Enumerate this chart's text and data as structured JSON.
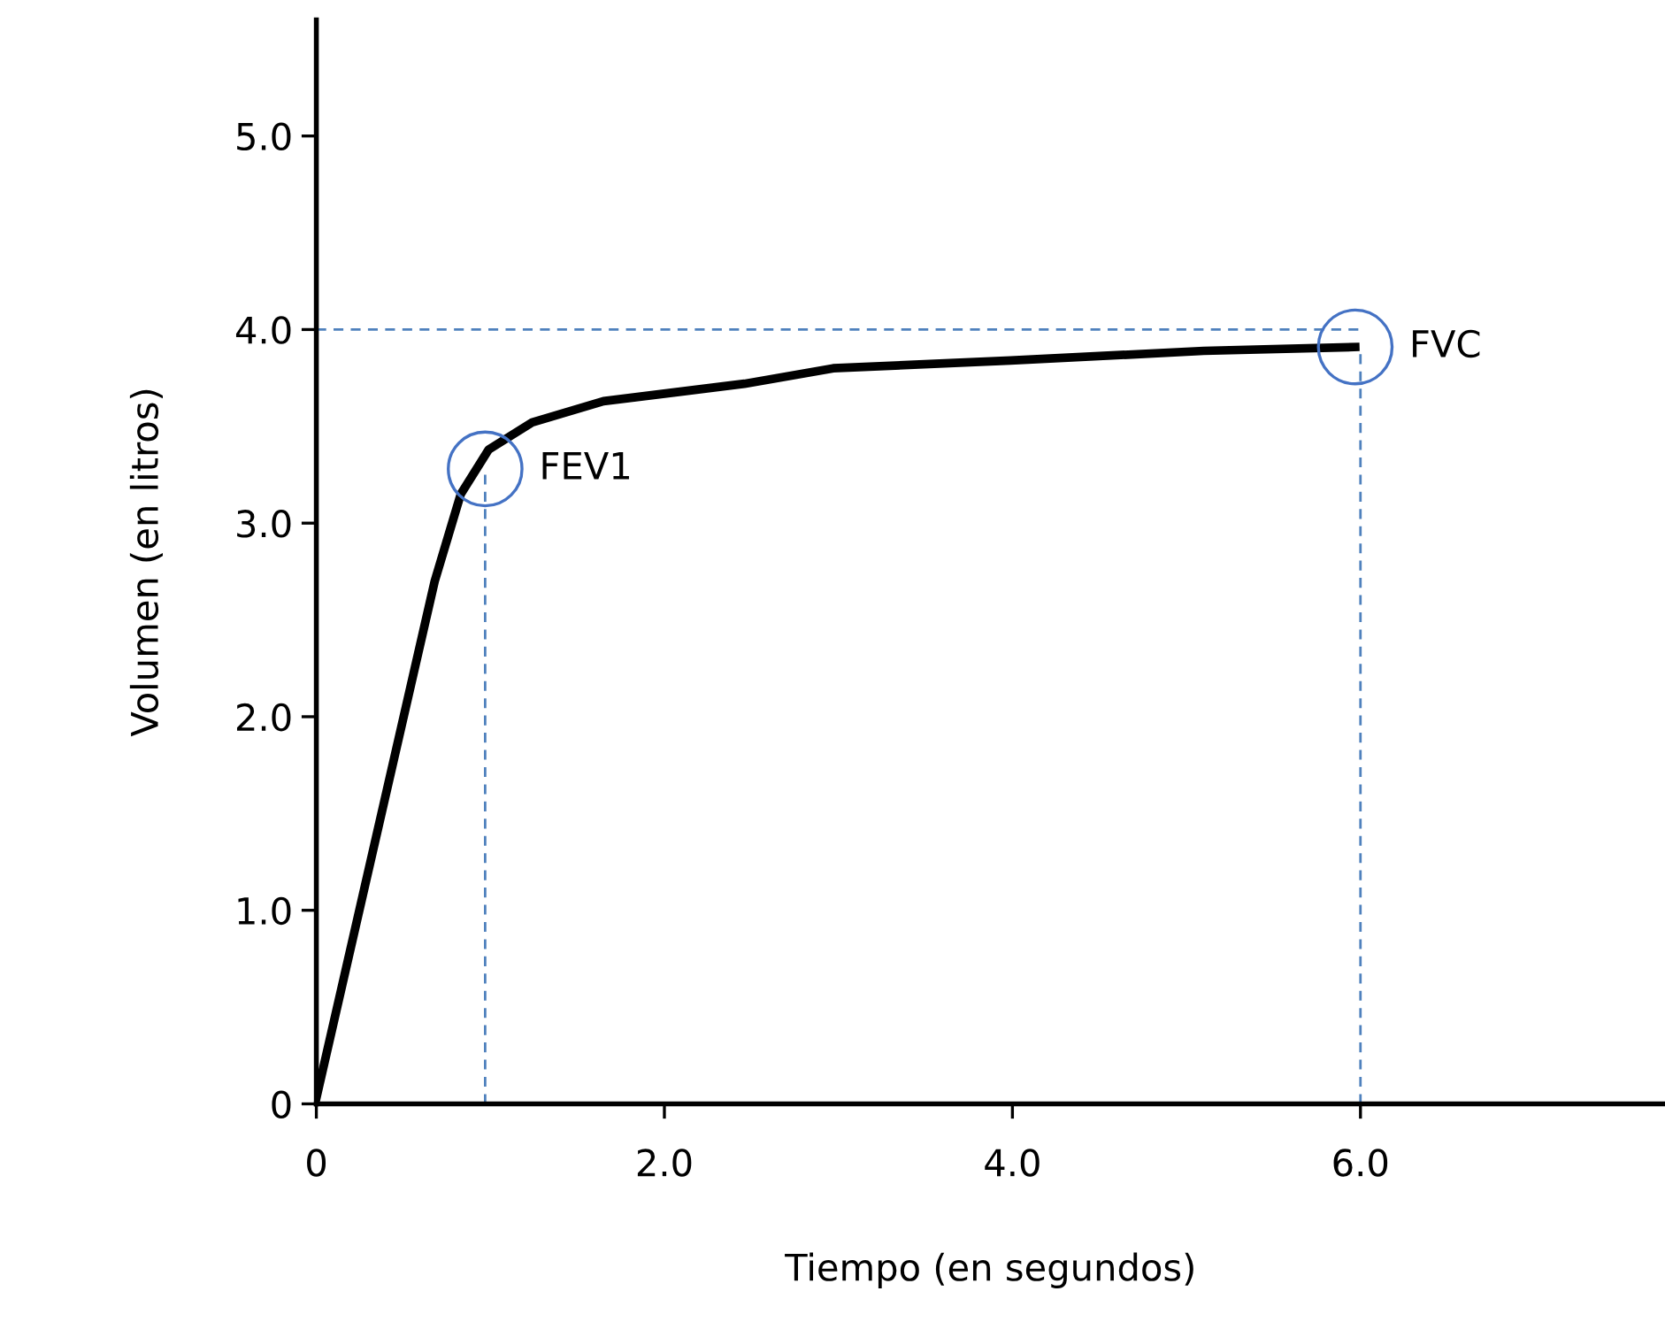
{
  "chart_data": {
    "type": "line",
    "xlabel": "Tiempo (en segundos)",
    "ylabel": "Volumen (en litros)",
    "xlim": [
      0,
      7.75
    ],
    "ylim": [
      0,
      5.6
    ],
    "xticks": [
      0,
      {
        "value": 2,
        "label": "2.0"
      },
      {
        "value": 4,
        "label": "4.0"
      },
      {
        "value": 6,
        "label": "6.0"
      }
    ],
    "yticks": [
      0,
      {
        "value": 1,
        "label": "1.0"
      },
      {
        "value": 2,
        "label": "2.0"
      },
      {
        "value": 3,
        "label": "3.0"
      },
      {
        "value": 4,
        "label": "4.0"
      },
      {
        "value": 5,
        "label": "5.0"
      }
    ],
    "grid": false,
    "legend": false,
    "series": [
      {
        "type": "line",
        "color": "#4f81bd",
        "line_style": "dashed",
        "x": [
          0,
          6
        ],
        "values": [
          4,
          4
        ]
      },
      {
        "type": "line",
        "color": "#4f81bd",
        "line_style": "dashed",
        "x": [
          0.97,
          0.97
        ],
        "values": [
          0,
          3.28
        ]
      },
      {
        "type": "line",
        "color": "#4f81bd",
        "line_style": "dashed",
        "x": [
          6,
          6
        ],
        "values": [
          0,
          3.91
        ]
      },
      {
        "color": "#000000",
        "line_style": "solid",
        "x": [
          0,
          0.68,
          0.83,
          0.99,
          1.24,
          1.65,
          2.46,
          2.97,
          3.99,
          5.1,
          5.97
        ],
        "values": [
          0.03,
          2.7,
          3.15,
          3.38,
          3.52,
          3.63,
          3.72,
          3.8,
          3.84,
          3.89,
          3.91
        ]
      },
      {
        "type": "scatter",
        "color": "#4472c4",
        "marker": "circle",
        "x": [
          0.97,
          5.97
        ],
        "values": [
          3.28,
          3.91
        ]
      }
    ],
    "annotations": [
      {
        "text": "FEV1",
        "x": 0.97,
        "y": 3.28
      },
      {
        "text": "FVC",
        "x": 5.97,
        "y": 3.91
      }
    ]
  }
}
